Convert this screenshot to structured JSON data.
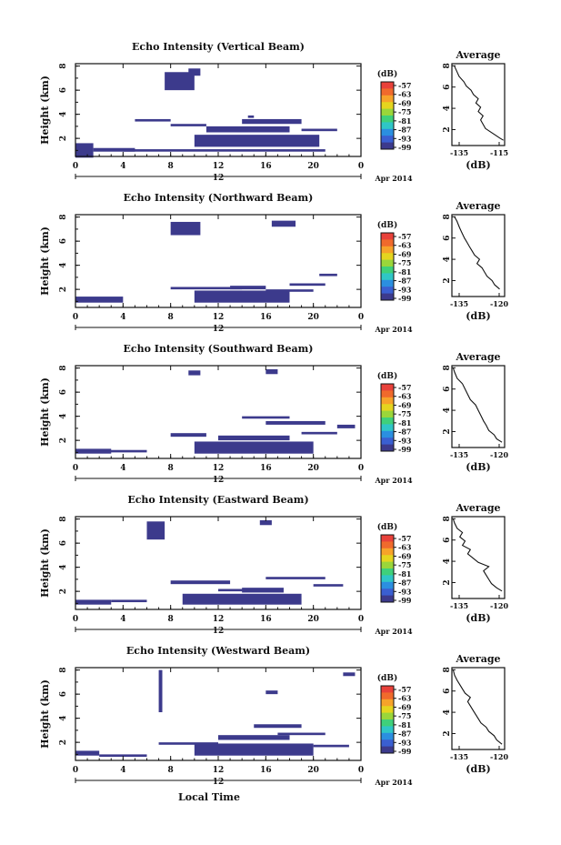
{
  "chart_data": {
    "type": "heatmap",
    "date_label": "Apr 2014",
    "date_tick": "12",
    "xlabel": "Local Time",
    "ylabel": "Height (km)",
    "x_ticks": [
      "0",
      "4",
      "8",
      "12",
      "16",
      "20",
      "0"
    ],
    "y_ticks": [
      "2",
      "4",
      "6",
      "8"
    ],
    "xlim": [
      0,
      24
    ],
    "ylim": [
      0.5,
      8.2
    ],
    "colorbar": {
      "unit": "(dB)",
      "labels": [
        "-57",
        "-63",
        "-69",
        "-75",
        "-81",
        "-87",
        "-93",
        "-99"
      ],
      "colors": [
        "#e8413a",
        "#f06a2c",
        "#f7a32a",
        "#e5d51f",
        "#9ad63a",
        "#3fd07a",
        "#2fc6c6",
        "#2b8fe0",
        "#3a5fd1",
        "#3c3a8c"
      ]
    },
    "cell_color": "#3c3a8c",
    "panels": [
      {
        "title": "Echo Intensity (Vertical Beam)",
        "avg_title": "Average",
        "avg_xlabel": "(dB)",
        "avg_xticks": [
          "-135",
          "-115"
        ],
        "avg_xlim": [
          -137,
          -115
        ],
        "avg_profile": [
          [
            -115.5,
            1.0
          ],
          [
            -117,
            1.2
          ],
          [
            -119,
            1.5
          ],
          [
            -121,
            1.8
          ],
          [
            -123,
            2.1
          ],
          [
            -124,
            2.5
          ],
          [
            -125,
            2.9
          ],
          [
            -124,
            3.3
          ],
          [
            -126,
            3.7
          ],
          [
            -125,
            4.1
          ],
          [
            -127,
            4.5
          ],
          [
            -126,
            4.9
          ],
          [
            -128,
            5.3
          ],
          [
            -129,
            5.7
          ],
          [
            -131,
            6.1
          ],
          [
            -132,
            6.5
          ],
          [
            -134,
            7.0
          ],
          [
            -135,
            7.5
          ],
          [
            -136,
            8.0
          ]
        ],
        "regions": [
          [
            0,
            1.5,
            0.4,
            1.6
          ],
          [
            1.5,
            5,
            0.9,
            1.2
          ],
          [
            4,
            21,
            0.9,
            1.1
          ],
          [
            10,
            20.5,
            1.3,
            2.3
          ],
          [
            11,
            18,
            2.5,
            3.0
          ],
          [
            14,
            19,
            3.2,
            3.6
          ],
          [
            8,
            11,
            3.0,
            3.2
          ],
          [
            5,
            8,
            3.4,
            3.6
          ],
          [
            19,
            22,
            2.6,
            2.8
          ],
          [
            7.5,
            10,
            6.0,
            7.5
          ],
          [
            9.5,
            10.5,
            7.2,
            7.8
          ],
          [
            13.5,
            14.5,
            2.5,
            2.9
          ],
          [
            14.5,
            15,
            3.7,
            3.9
          ]
        ]
      },
      {
        "title": "Echo Intensity (Northward Beam)",
        "avg_title": "Average",
        "avg_xlabel": "(dB)",
        "avg_xticks": [
          "-135",
          "-120"
        ],
        "avg_xlim": [
          -138,
          -117
        ],
        "avg_profile": [
          [
            -119,
            1.2
          ],
          [
            -121,
            1.6
          ],
          [
            -122,
            2.0
          ],
          [
            -124,
            2.4
          ],
          [
            -125,
            2.8
          ],
          [
            -126,
            3.2
          ],
          [
            -128,
            3.6
          ],
          [
            -127,
            4.0
          ],
          [
            -129,
            4.4
          ],
          [
            -130,
            4.8
          ],
          [
            -131,
            5.2
          ],
          [
            -132,
            5.6
          ],
          [
            -133,
            6.0
          ],
          [
            -134,
            6.5
          ],
          [
            -135,
            7.0
          ],
          [
            -136,
            7.6
          ],
          [
            -137,
            8.0
          ]
        ],
        "regions": [
          [
            0,
            4,
            0.9,
            1.4
          ],
          [
            10,
            18,
            0.9,
            1.9
          ],
          [
            13,
            16,
            2.0,
            2.3
          ],
          [
            8,
            14,
            2.0,
            2.2
          ],
          [
            16,
            20,
            1.8,
            2.0
          ],
          [
            8,
            10.5,
            6.5,
            7.6
          ],
          [
            16.5,
            18.5,
            7.2,
            7.7
          ],
          [
            20.5,
            22,
            3.1,
            3.3
          ],
          [
            18,
            21,
            2.3,
            2.5
          ]
        ]
      },
      {
        "title": "Echo Intensity (Southward Beam)",
        "avg_title": "Average",
        "avg_xlabel": "(dB)",
        "avg_xticks": [
          "-135",
          "-120"
        ],
        "avg_xlim": [
          -138,
          -118
        ],
        "avg_profile": [
          [
            -119,
            1.0
          ],
          [
            -121,
            1.3
          ],
          [
            -122,
            1.7
          ],
          [
            -124,
            2.1
          ],
          [
            -125,
            2.6
          ],
          [
            -126,
            3.0
          ],
          [
            -127,
            3.5
          ],
          [
            -128,
            4.0
          ],
          [
            -129,
            4.5
          ],
          [
            -131,
            5.0
          ],
          [
            -132,
            5.5
          ],
          [
            -133,
            6.0
          ],
          [
            -134,
            6.5
          ],
          [
            -136,
            7.0
          ],
          [
            -137,
            7.6
          ],
          [
            -137.5,
            8.0
          ]
        ],
        "regions": [
          [
            0,
            3,
            0.9,
            1.3
          ],
          [
            10,
            20,
            0.9,
            1.9
          ],
          [
            12,
            18,
            2.0,
            2.4
          ],
          [
            8,
            11,
            2.3,
            2.6
          ],
          [
            16,
            21,
            3.3,
            3.6
          ],
          [
            14,
            18,
            3.8,
            4.0
          ],
          [
            19,
            22,
            2.5,
            2.7
          ],
          [
            16,
            17,
            7.5,
            7.9
          ],
          [
            9.5,
            10.5,
            7.4,
            7.8
          ],
          [
            22,
            23.5,
            3.0,
            3.3
          ],
          [
            1.5,
            6,
            1.0,
            1.2
          ]
        ]
      },
      {
        "title": "Echo Intensity (Eastward Beam)",
        "avg_title": "Average",
        "avg_xlabel": "(dB)",
        "avg_xticks": [
          "-135",
          "-120"
        ],
        "avg_xlim": [
          -138,
          -118
        ],
        "avg_profile": [
          [
            -119,
            1.2
          ],
          [
            -121,
            1.5
          ],
          [
            -123,
            1.9
          ],
          [
            -124,
            2.3
          ],
          [
            -125,
            2.7
          ],
          [
            -126,
            3.1
          ],
          [
            -124,
            3.5
          ],
          [
            -128,
            3.9
          ],
          [
            -130,
            4.3
          ],
          [
            -132,
            4.7
          ],
          [
            -131,
            5.1
          ],
          [
            -134,
            5.5
          ],
          [
            -133,
            5.9
          ],
          [
            -135,
            6.3
          ],
          [
            -134,
            6.7
          ],
          [
            -136,
            7.1
          ],
          [
            -137,
            7.6
          ],
          [
            -137.5,
            8.0
          ]
        ],
        "regions": [
          [
            0,
            3,
            0.9,
            1.3
          ],
          [
            9,
            19,
            0.9,
            1.8
          ],
          [
            14,
            17.5,
            1.9,
            2.3
          ],
          [
            8,
            13,
            2.6,
            2.9
          ],
          [
            16,
            21,
            3.0,
            3.2
          ],
          [
            6,
            7.5,
            6.3,
            7.8
          ],
          [
            15.5,
            16.5,
            7.5,
            7.9
          ],
          [
            20,
            22.5,
            2.4,
            2.6
          ],
          [
            12,
            15,
            2.0,
            2.2
          ],
          [
            3,
            6,
            1.1,
            1.3
          ]
        ]
      },
      {
        "title": "Echo Intensity (Westward Beam)",
        "avg_title": "Average",
        "avg_xlabel": "(dB)",
        "avg_xticks": [
          "-135",
          "-120"
        ],
        "avg_xlim": [
          -138,
          -118
        ],
        "avg_profile": [
          [
            -119,
            1.0
          ],
          [
            -121,
            1.4
          ],
          [
            -122,
            1.8
          ],
          [
            -124,
            2.2
          ],
          [
            -125,
            2.6
          ],
          [
            -127,
            3.0
          ],
          [
            -128,
            3.4
          ],
          [
            -129,
            3.8
          ],
          [
            -130,
            4.2
          ],
          [
            -131,
            4.6
          ],
          [
            -132,
            5.0
          ],
          [
            -131,
            5.4
          ],
          [
            -133,
            5.8
          ],
          [
            -134,
            6.2
          ],
          [
            -135,
            6.6
          ],
          [
            -136,
            7.0
          ],
          [
            -137,
            7.5
          ],
          [
            -137.5,
            8.0
          ]
        ],
        "regions": [
          [
            0,
            2,
            0.9,
            1.3
          ],
          [
            2,
            6,
            0.8,
            1.0
          ],
          [
            10,
            20,
            0.9,
            1.9
          ],
          [
            12,
            18,
            2.2,
            2.6
          ],
          [
            15,
            19,
            3.2,
            3.5
          ],
          [
            7,
            12,
            1.8,
            2.0
          ],
          [
            17,
            21,
            2.6,
            2.8
          ],
          [
            20,
            23,
            1.6,
            1.8
          ],
          [
            7,
            7.3,
            4.5,
            8.0
          ],
          [
            16,
            17,
            6.0,
            6.3
          ],
          [
            22.5,
            23.5,
            7.5,
            7.8
          ]
        ]
      }
    ]
  }
}
